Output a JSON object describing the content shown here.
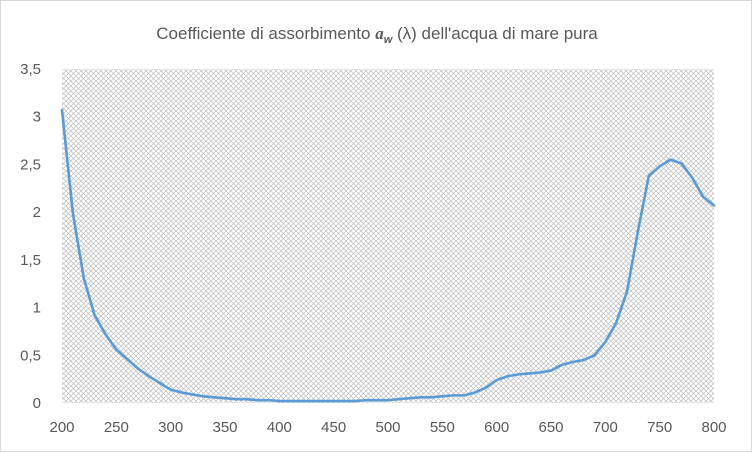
{
  "chart_data": {
    "type": "line",
    "title": {
      "prefix": "Coefficiente di assorbimento ",
      "symbol": "a",
      "subscript": "w",
      "suffix": " (λ) dell'acqua di mare pura"
    },
    "xlabel": "",
    "ylabel": "",
    "xlim": [
      200,
      800
    ],
    "ylim": [
      0,
      3.5
    ],
    "x_ticks": [
      "200",
      "250",
      "300",
      "350",
      "400",
      "450",
      "500",
      "550",
      "600",
      "650",
      "700",
      "750",
      "800"
    ],
    "y_ticks": [
      "0",
      "0,5",
      "1",
      "1,5",
      "2",
      "2,5",
      "3",
      "3,5"
    ],
    "grid": false,
    "plot_area_fill": "hatched",
    "legend": "none",
    "series": [
      {
        "color": "#5b9bd5",
        "x": [
          200,
          210,
          220,
          230,
          240,
          250,
          260,
          270,
          280,
          290,
          300,
          310,
          320,
          330,
          340,
          350,
          360,
          370,
          380,
          390,
          400,
          410,
          420,
          430,
          440,
          450,
          460,
          470,
          480,
          490,
          500,
          510,
          520,
          530,
          540,
          550,
          560,
          570,
          580,
          590,
          600,
          610,
          620,
          630,
          640,
          650,
          660,
          670,
          680,
          690,
          700,
          710,
          720,
          730,
          740,
          750,
          760,
          770,
          780,
          790,
          800
        ],
        "y": [
          3.07,
          1.99,
          1.31,
          0.92,
          0.72,
          0.56,
          0.46,
          0.36,
          0.28,
          0.21,
          0.14,
          0.11,
          0.09,
          0.07,
          0.06,
          0.05,
          0.04,
          0.04,
          0.03,
          0.03,
          0.02,
          0.02,
          0.02,
          0.02,
          0.02,
          0.02,
          0.02,
          0.02,
          0.03,
          0.03,
          0.03,
          0.04,
          0.05,
          0.06,
          0.06,
          0.07,
          0.08,
          0.08,
          0.11,
          0.16,
          0.24,
          0.28,
          0.3,
          0.31,
          0.32,
          0.34,
          0.4,
          0.43,
          0.45,
          0.5,
          0.64,
          0.84,
          1.17,
          1.8,
          2.38,
          2.48,
          2.55,
          2.51,
          2.36,
          2.16,
          2.07
        ]
      }
    ]
  },
  "colors": {
    "line": "#5b9bd5",
    "hatch": "#b3b3b3",
    "text": "#595959",
    "border": "#d9d9d9"
  }
}
